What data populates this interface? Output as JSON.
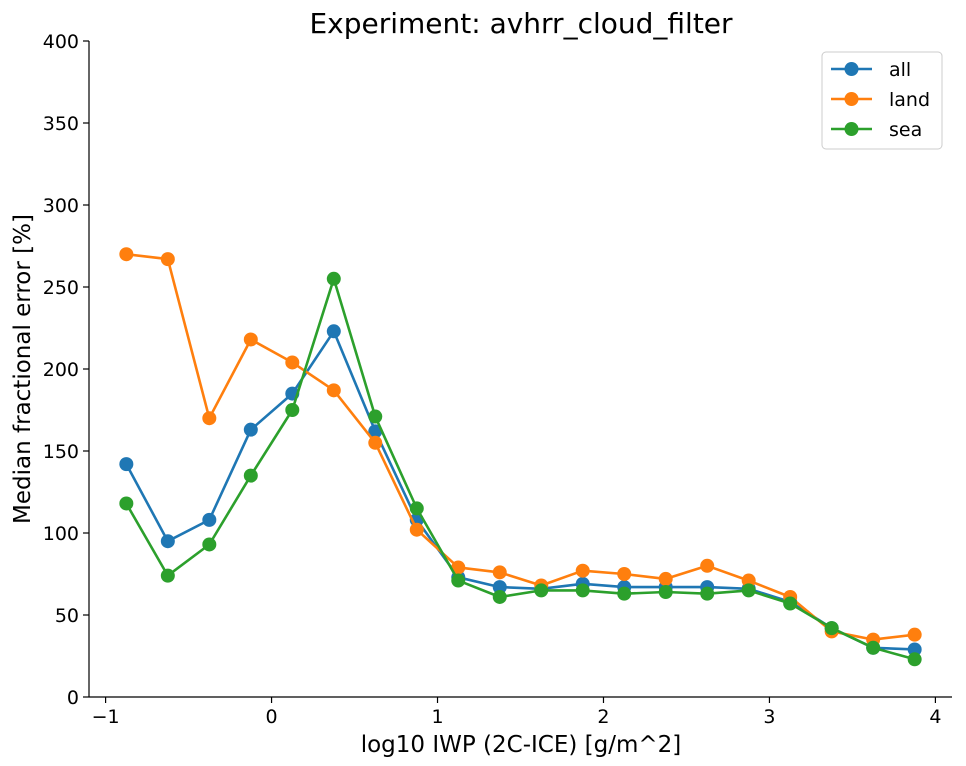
{
  "chart_data": {
    "type": "line",
    "title": "Experiment: avhrr_cloud_filter",
    "xlabel": "log10 IWP (2C-ICE) [g/m^2]",
    "ylabel": "Median fractional error [%]",
    "xlim": [
      -1.1,
      4.1
    ],
    "ylim": [
      0,
      400
    ],
    "xticks": [
      -1,
      0,
      1,
      2,
      3,
      4
    ],
    "xtick_labels": [
      "−1",
      "0",
      "1",
      "2",
      "3",
      "4"
    ],
    "yticks": [
      0,
      50,
      100,
      150,
      200,
      250,
      300,
      350,
      400
    ],
    "ytick_labels": [
      "0",
      "50",
      "100",
      "150",
      "200",
      "250",
      "300",
      "350",
      "400"
    ],
    "grid": false,
    "legend_position": "top-right",
    "x": [
      -0.875,
      -0.625,
      -0.375,
      -0.125,
      0.125,
      0.375,
      0.625,
      0.875,
      1.125,
      1.375,
      1.625,
      1.875,
      2.125,
      2.375,
      2.625,
      2.875,
      3.125,
      3.375,
      3.625,
      3.875
    ],
    "series": [
      {
        "name": "all",
        "color": "#1f77b4",
        "values": [
          142,
          95,
          108,
          163,
          185,
          223,
          162,
          108,
          73,
          67,
          66,
          69,
          67,
          67,
          67,
          66,
          58,
          42,
          30,
          29
        ]
      },
      {
        "name": "land",
        "color": "#ff7f0e",
        "values": [
          270,
          267,
          170,
          218,
          204,
          187,
          155,
          102,
          79,
          76,
          68,
          77,
          75,
          72,
          80,
          71,
          61,
          40,
          35,
          38
        ]
      },
      {
        "name": "sea",
        "color": "#2ca02c",
        "values": [
          118,
          74,
          93,
          135,
          175,
          255,
          171,
          115,
          71,
          61,
          65,
          65,
          63,
          64,
          63,
          65,
          57,
          42,
          30,
          23
        ]
      }
    ]
  }
}
